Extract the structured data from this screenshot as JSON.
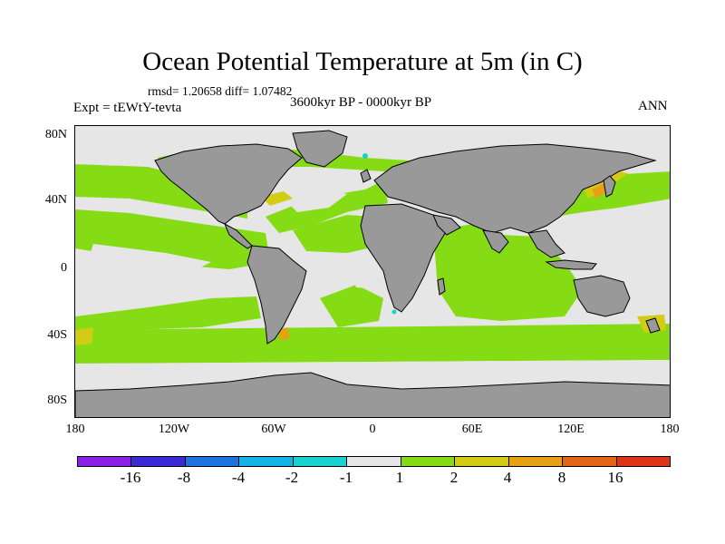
{
  "title": "Ocean Potential Temperature at 5m (in C)",
  "stats": "rmsd= 1.20658 diff= 1.07482",
  "experiment": "Expt = tEWtY-tevta",
  "period": "3600kyr BP - 0000kyr BP",
  "season": "ANN",
  "lat_labels": [
    "80N",
    "40N",
    "0",
    "40S",
    "80S"
  ],
  "lon_labels": [
    "180",
    "120W",
    "60W",
    "0",
    "60E",
    "120E",
    "180"
  ],
  "colorbar": {
    "colors": [
      "#8a1ee6",
      "#3a2ad6",
      "#1e73e0",
      "#14b4e6",
      "#18d2d2",
      "#e6e6e6",
      "#86dc14",
      "#d2cc14",
      "#e8a014",
      "#e26414",
      "#e03214"
    ],
    "labels": [
      "-16",
      "-8",
      "-4",
      "-2",
      "-1",
      "1",
      "2",
      "4",
      "8",
      "16"
    ]
  },
  "map_colors": {
    "land": "#999999",
    "ocean_small": "#e6e6e6",
    "ocean_2": "#86dc14",
    "ocean_4": "#d2cc14",
    "ocean_8": "#e8a014",
    "ocean_neg": "#18d2d2"
  }
}
